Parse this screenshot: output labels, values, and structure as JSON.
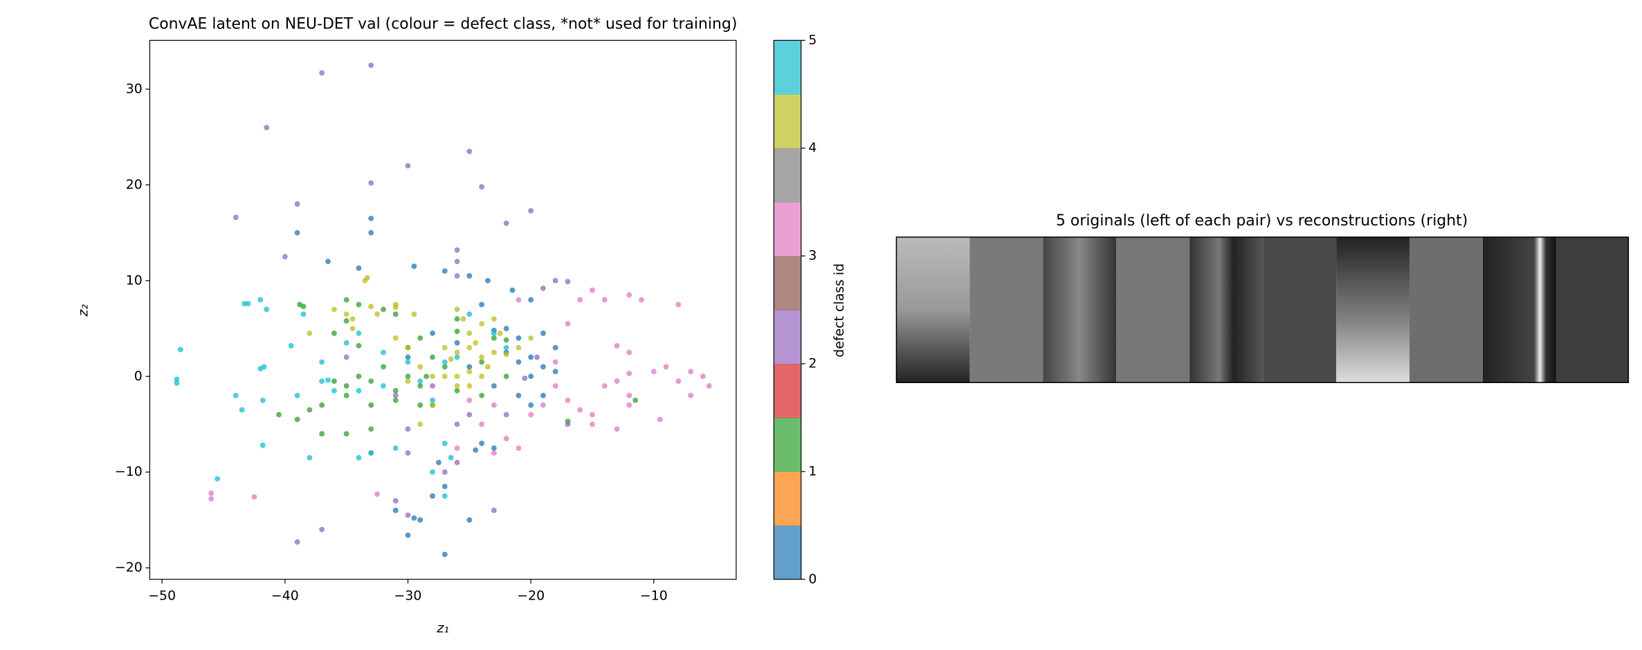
{
  "chart_data": [
    {
      "type": "scatter",
      "title": "ConvAE latent on NEU-DET val (colour = defect class, *not* used for training)",
      "xlabel": "z₁",
      "ylabel": "z₂",
      "xlim": [
        -51.0,
        -3.3
      ],
      "ylim": [
        -21.2,
        35.1
      ],
      "xticks": [
        {
          "value": -50,
          "label": "−50"
        },
        {
          "value": -40,
          "label": "−40"
        },
        {
          "value": -30,
          "label": "−30"
        },
        {
          "value": -20,
          "label": "−20"
        },
        {
          "value": -10,
          "label": "−10"
        }
      ],
      "yticks": [
        {
          "value": -20,
          "label": "−20"
        },
        {
          "value": -10,
          "label": "−10"
        },
        0,
        10,
        20,
        30
      ],
      "alpha": 0.75,
      "series": [
        {
          "color": "#1f77b4",
          "x": [
            -39,
            -36.5,
            -34,
            -29.5,
            -27,
            -25,
            -23.5,
            -21.5,
            -20,
            -24,
            -22,
            -23,
            -21,
            -19,
            -18,
            -20,
            -22,
            -21,
            -19,
            -18,
            -20,
            -23,
            -21,
            -20,
            -19,
            -24,
            -24.5,
            -23,
            -28,
            -27,
            -31,
            -29,
            -29.5,
            -30,
            -27,
            -25,
            -27.5,
            -33,
            -33,
            -30,
            -28,
            -26,
            -25
          ],
          "values": [
            15,
            12,
            11.3,
            11.5,
            11,
            10.5,
            10,
            9,
            8,
            7.5,
            5,
            4.8,
            4,
            4.5,
            3,
            2,
            2.5,
            1.5,
            1,
            0.5,
            0,
            -1,
            -2,
            -3,
            -2,
            -7,
            -7.7,
            -7.5,
            -12.5,
            -11.5,
            -14,
            -15,
            -14.8,
            -16.6,
            -18.6,
            -15,
            -9,
            16.5,
            15,
            2,
            4.5,
            3.5,
            1
          ]
        },
        {
          "color": "#2ca02c",
          "x": [
            -38.8,
            -38.5,
            -35,
            -34,
            -32,
            -31,
            -35,
            -36,
            -34,
            -30,
            -29,
            -26,
            -23,
            -22,
            -28,
            -27,
            -32,
            -34,
            -33,
            -35,
            -36,
            -31,
            -29,
            -28.5,
            -30,
            -31,
            -33,
            -35,
            -37,
            -38,
            -39,
            -40.5,
            -37,
            -35,
            -33,
            -29,
            -26,
            -28,
            -24,
            -26,
            -17,
            -11.5,
            -22,
            -24
          ],
          "values": [
            7.5,
            7.3,
            8,
            7.5,
            7,
            6.5,
            5.8,
            4.5,
            3.2,
            3,
            4,
            4.7,
            4,
            3.8,
            2,
            1,
            1,
            0,
            -0.5,
            -1,
            -0.5,
            -1.5,
            -1,
            0,
            0,
            -2.5,
            -3,
            -2,
            -3,
            -3.5,
            -4.5,
            -4,
            -6,
            -6,
            -5.5,
            -3,
            -1.5,
            -3,
            1.5,
            6,
            -4.7,
            -2.5,
            0,
            -2
          ]
        },
        {
          "color": "#9467bd",
          "x": [
            -33,
            -37,
            -41.5,
            -25,
            -30,
            -24,
            -33,
            -39,
            -44,
            -20,
            -22,
            -40,
            -26,
            -26,
            -19,
            -17,
            -18,
            -26,
            -35,
            -31,
            -30,
            -26,
            -30,
            -33,
            -27,
            -26,
            -23,
            -31,
            -30,
            -37,
            -39,
            -25,
            -22,
            -28,
            -19.5,
            -20.5,
            -17
          ],
          "values": [
            32.5,
            31.7,
            26,
            23.5,
            22,
            19.8,
            20.2,
            18,
            16.6,
            17.3,
            16,
            12.5,
            13.2,
            12,
            9.2,
            9.9,
            10,
            10.5,
            2,
            -2,
            -5.5,
            -5,
            -8,
            -8,
            -10,
            -9,
            -14,
            -13,
            -14.5,
            -16,
            -17.3,
            -4,
            -4,
            -1,
            2,
            -0.2,
            -5
          ]
        },
        {
          "color": "#e377c2",
          "x": [
            -15,
            -14,
            -12,
            -11,
            -8,
            -16,
            -9,
            -7,
            -6,
            -5.5,
            -7,
            -8,
            -10,
            -12,
            -13,
            -12,
            -14,
            -9.5,
            -12,
            -15,
            -17,
            -18,
            -18,
            -13,
            -16,
            -15,
            -19,
            -22,
            -21,
            -23,
            -25,
            -23,
            -12,
            -13,
            -17,
            -21,
            -46,
            -46,
            -42.5,
            -32.5,
            -26,
            -24,
            -20
          ],
          "values": [
            9,
            8,
            8.5,
            8,
            7.5,
            8,
            1,
            0.5,
            0,
            -1,
            -2,
            -0.5,
            0.5,
            0.3,
            -0.5,
            -2,
            -1,
            -4.5,
            -3,
            -4,
            -2.5,
            -1,
            1.5,
            -5.5,
            -3.5,
            -5,
            -3,
            -6.5,
            -7.5,
            -8,
            -2.5,
            -3,
            2.5,
            3.2,
            5.5,
            8,
            -12.2,
            -12.8,
            -12.6,
            -12.3,
            -7.5,
            -5,
            -4
          ]
        },
        {
          "color": "#bcbd22",
          "x": [
            -33.5,
            -33.3,
            -29.5,
            -32.5,
            -34.5,
            -35,
            -34.5,
            -36,
            -31,
            -38,
            -33,
            -26,
            -25.5,
            -24,
            -23,
            -25,
            -24.5,
            -25,
            -24,
            -23.5,
            -26,
            -27,
            -26.5,
            -27,
            -26,
            -25,
            -24,
            -25,
            -26,
            -28,
            -29,
            -30,
            -31,
            -23,
            -22,
            -21,
            -20,
            -28,
            -29,
            -30,
            -31,
            -22.5
          ],
          "values": [
            10,
            10.3,
            6.5,
            6.5,
            6,
            6.5,
            5,
            7,
            7.5,
            4.5,
            7.3,
            7,
            6,
            5.5,
            6,
            4.5,
            3.5,
            3,
            2,
            1,
            2.5,
            3,
            1.8,
            0,
            0,
            0.5,
            0,
            -1,
            -1,
            0,
            1,
            3,
            4,
            2.5,
            2.3,
            3,
            4,
            -3,
            -5,
            -0.5,
            7.2,
            4.5
          ]
        },
        {
          "color": "#17becf",
          "x": [
            -48.5,
            -48.8,
            -48.8,
            -45.5,
            -43,
            -43.3,
            -42,
            -41.5,
            -41.7,
            -42,
            -44,
            -43.5,
            -41.8,
            -41.8,
            -39.5,
            -39,
            -38.5,
            -38,
            -37,
            -37,
            -36,
            -35,
            -34,
            -34,
            -34,
            -33,
            -32,
            -31,
            -30,
            -29,
            -28,
            -28,
            -27,
            -27,
            -26,
            -25,
            -23,
            -22,
            -27,
            -26.5,
            -32,
            -36.5
          ],
          "values": [
            2.8,
            -0.3,
            -0.7,
            -10.7,
            7.6,
            7.6,
            8,
            7,
            1,
            0.8,
            -2,
            -3.5,
            -2.5,
            -7.2,
            3.2,
            -2,
            6.5,
            -8.5,
            1.5,
            -0.5,
            -1.5,
            3.5,
            4.5,
            -1.5,
            -8.5,
            -8,
            -1,
            -7.5,
            1.5,
            -0.5,
            -2.5,
            -10,
            -12.5,
            1.5,
            2,
            6.5,
            4.5,
            3,
            -7,
            -8.5,
            2.5,
            -0.4
          ]
        }
      ],
      "colorbar": {
        "label": "defect class id",
        "lim": [
          0,
          5
        ],
        "ticks": [
          0,
          1,
          2,
          3,
          4,
          5
        ],
        "alpha": 0.7,
        "colors": [
          "#1f77b4",
          "#ff7f0e",
          "#2ca02c",
          "#d62728",
          "#9467bd",
          "#8c564b",
          "#e377c2",
          "#7f7f7f",
          "#bcbd22",
          "#17becf"
        ]
      }
    },
    {
      "type": "image",
      "title": "5 originals (left of each pair) vs reconstructions (right)"
    }
  ]
}
